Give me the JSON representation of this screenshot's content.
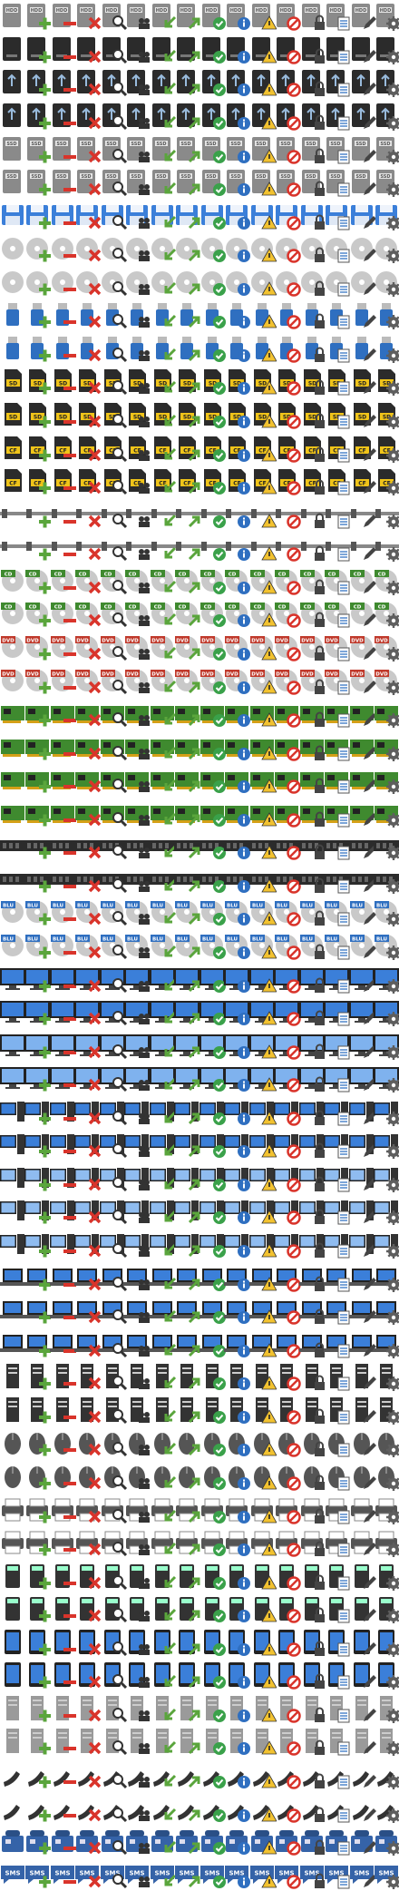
{
  "palette": {
    "drive_gray": "#8a8a8a",
    "drive_dark": "#2b2b2b",
    "screen_blue": "#3b7fd9",
    "disc_silver": "#c9c9c9",
    "card_green": "#3f8a2f",
    "sms_blue": "#3563a8",
    "add_green": "#5aa53c",
    "remove_red": "#d9342b",
    "ok_green": "#3aa14a",
    "info_blue": "#2f6fc0",
    "warn_yellow": "#f2c230",
    "gear_gray": "#5e5e5e"
  },
  "overlays": [
    "none",
    "add",
    "remove",
    "delete",
    "search",
    "pair",
    "import",
    "export",
    "ok",
    "info",
    "warning",
    "block",
    "lock",
    "list",
    "edit",
    "settings"
  ],
  "device_rows": [
    {
      "device": "hdd",
      "label": "HDD",
      "count": 16
    },
    {
      "device": "hdd-dark",
      "label": "",
      "count": 16
    },
    {
      "device": "usb-drive",
      "label": "",
      "count": 16
    },
    {
      "device": "usb-drive",
      "label": "",
      "count": 16
    },
    {
      "device": "ssd",
      "label": "SSD",
      "count": 16
    },
    {
      "device": "ssd",
      "label": "SSD",
      "count": 16
    },
    {
      "device": "floppy",
      "label": "",
      "count": 16
    },
    {
      "device": "optical-drive",
      "label": "",
      "count": 16
    },
    {
      "device": "optical-drive",
      "label": "",
      "count": 16
    },
    {
      "device": "usb-stick",
      "label": "",
      "count": 16
    },
    {
      "device": "usb-stick",
      "label": "",
      "count": 16
    },
    {
      "device": "sd-card",
      "label": "SD",
      "count": 16
    },
    {
      "device": "sd-card",
      "label": "SD",
      "count": 16
    },
    {
      "device": "cf-card",
      "label": "CF",
      "count": 16
    },
    {
      "device": "cf-card",
      "label": "CF",
      "count": 16
    },
    {
      "device": "cable",
      "label": "",
      "count": 16
    },
    {
      "device": "cable",
      "label": "",
      "count": 16
    },
    {
      "device": "cd",
      "label": "CD",
      "count": 16
    },
    {
      "device": "cd",
      "label": "CD",
      "count": 16
    },
    {
      "device": "dvd",
      "label": "DVD",
      "count": 16
    },
    {
      "device": "dvd",
      "label": "DVD",
      "count": 16
    },
    {
      "device": "network-card",
      "label": "",
      "count": 16
    },
    {
      "device": "network-card",
      "label": "",
      "count": 16
    },
    {
      "device": "expansion-card",
      "label": "",
      "count": 16
    },
    {
      "device": "expansion-card",
      "label": "",
      "count": 16
    },
    {
      "device": "ram",
      "label": "",
      "count": 16
    },
    {
      "device": "ram",
      "label": "",
      "count": 16
    },
    {
      "device": "bluray",
      "label": "BLU",
      "count": 16
    },
    {
      "device": "bluray",
      "label": "BLU",
      "count": 16
    },
    {
      "device": "monitor",
      "label": "",
      "count": 16
    },
    {
      "device": "monitor",
      "label": "",
      "count": 16
    },
    {
      "device": "monitor-light",
      "label": "",
      "count": 16
    },
    {
      "device": "monitor-light",
      "label": "",
      "count": 16
    },
    {
      "device": "computer",
      "label": "",
      "count": 16
    },
    {
      "device": "computer",
      "label": "",
      "count": 16
    },
    {
      "device": "computer-light",
      "label": "",
      "count": 16
    },
    {
      "device": "computer-light",
      "label": "",
      "count": 16
    },
    {
      "device": "computer-light",
      "label": "",
      "count": 16
    },
    {
      "device": "laptop",
      "label": "",
      "count": 16
    },
    {
      "device": "laptop",
      "label": "",
      "count": 16
    },
    {
      "device": "laptop",
      "label": "",
      "count": 16
    },
    {
      "device": "server",
      "label": "",
      "count": 16
    },
    {
      "device": "server",
      "label": "",
      "count": 16
    },
    {
      "device": "mouse",
      "label": "",
      "count": 16
    },
    {
      "device": "mouse",
      "label": "",
      "count": 16
    },
    {
      "device": "printer",
      "label": "",
      "count": 16
    },
    {
      "device": "printer",
      "label": "",
      "count": 16
    },
    {
      "device": "calculator",
      "label": "",
      "count": 16
    },
    {
      "device": "calculator",
      "label": "",
      "count": 16
    },
    {
      "device": "tablet",
      "label": "",
      "count": 16
    },
    {
      "device": "tablet",
      "label": "",
      "count": 16
    },
    {
      "device": "tower",
      "label": "",
      "count": 16
    },
    {
      "device": "tower",
      "label": "",
      "count": 16
    },
    {
      "device": "phone",
      "label": "",
      "count": 16
    },
    {
      "device": "phone",
      "label": "",
      "count": 16
    },
    {
      "device": "desk-phone",
      "label": "",
      "count": 16
    },
    {
      "device": "sms",
      "label": "SMS",
      "count": 16
    }
  ]
}
